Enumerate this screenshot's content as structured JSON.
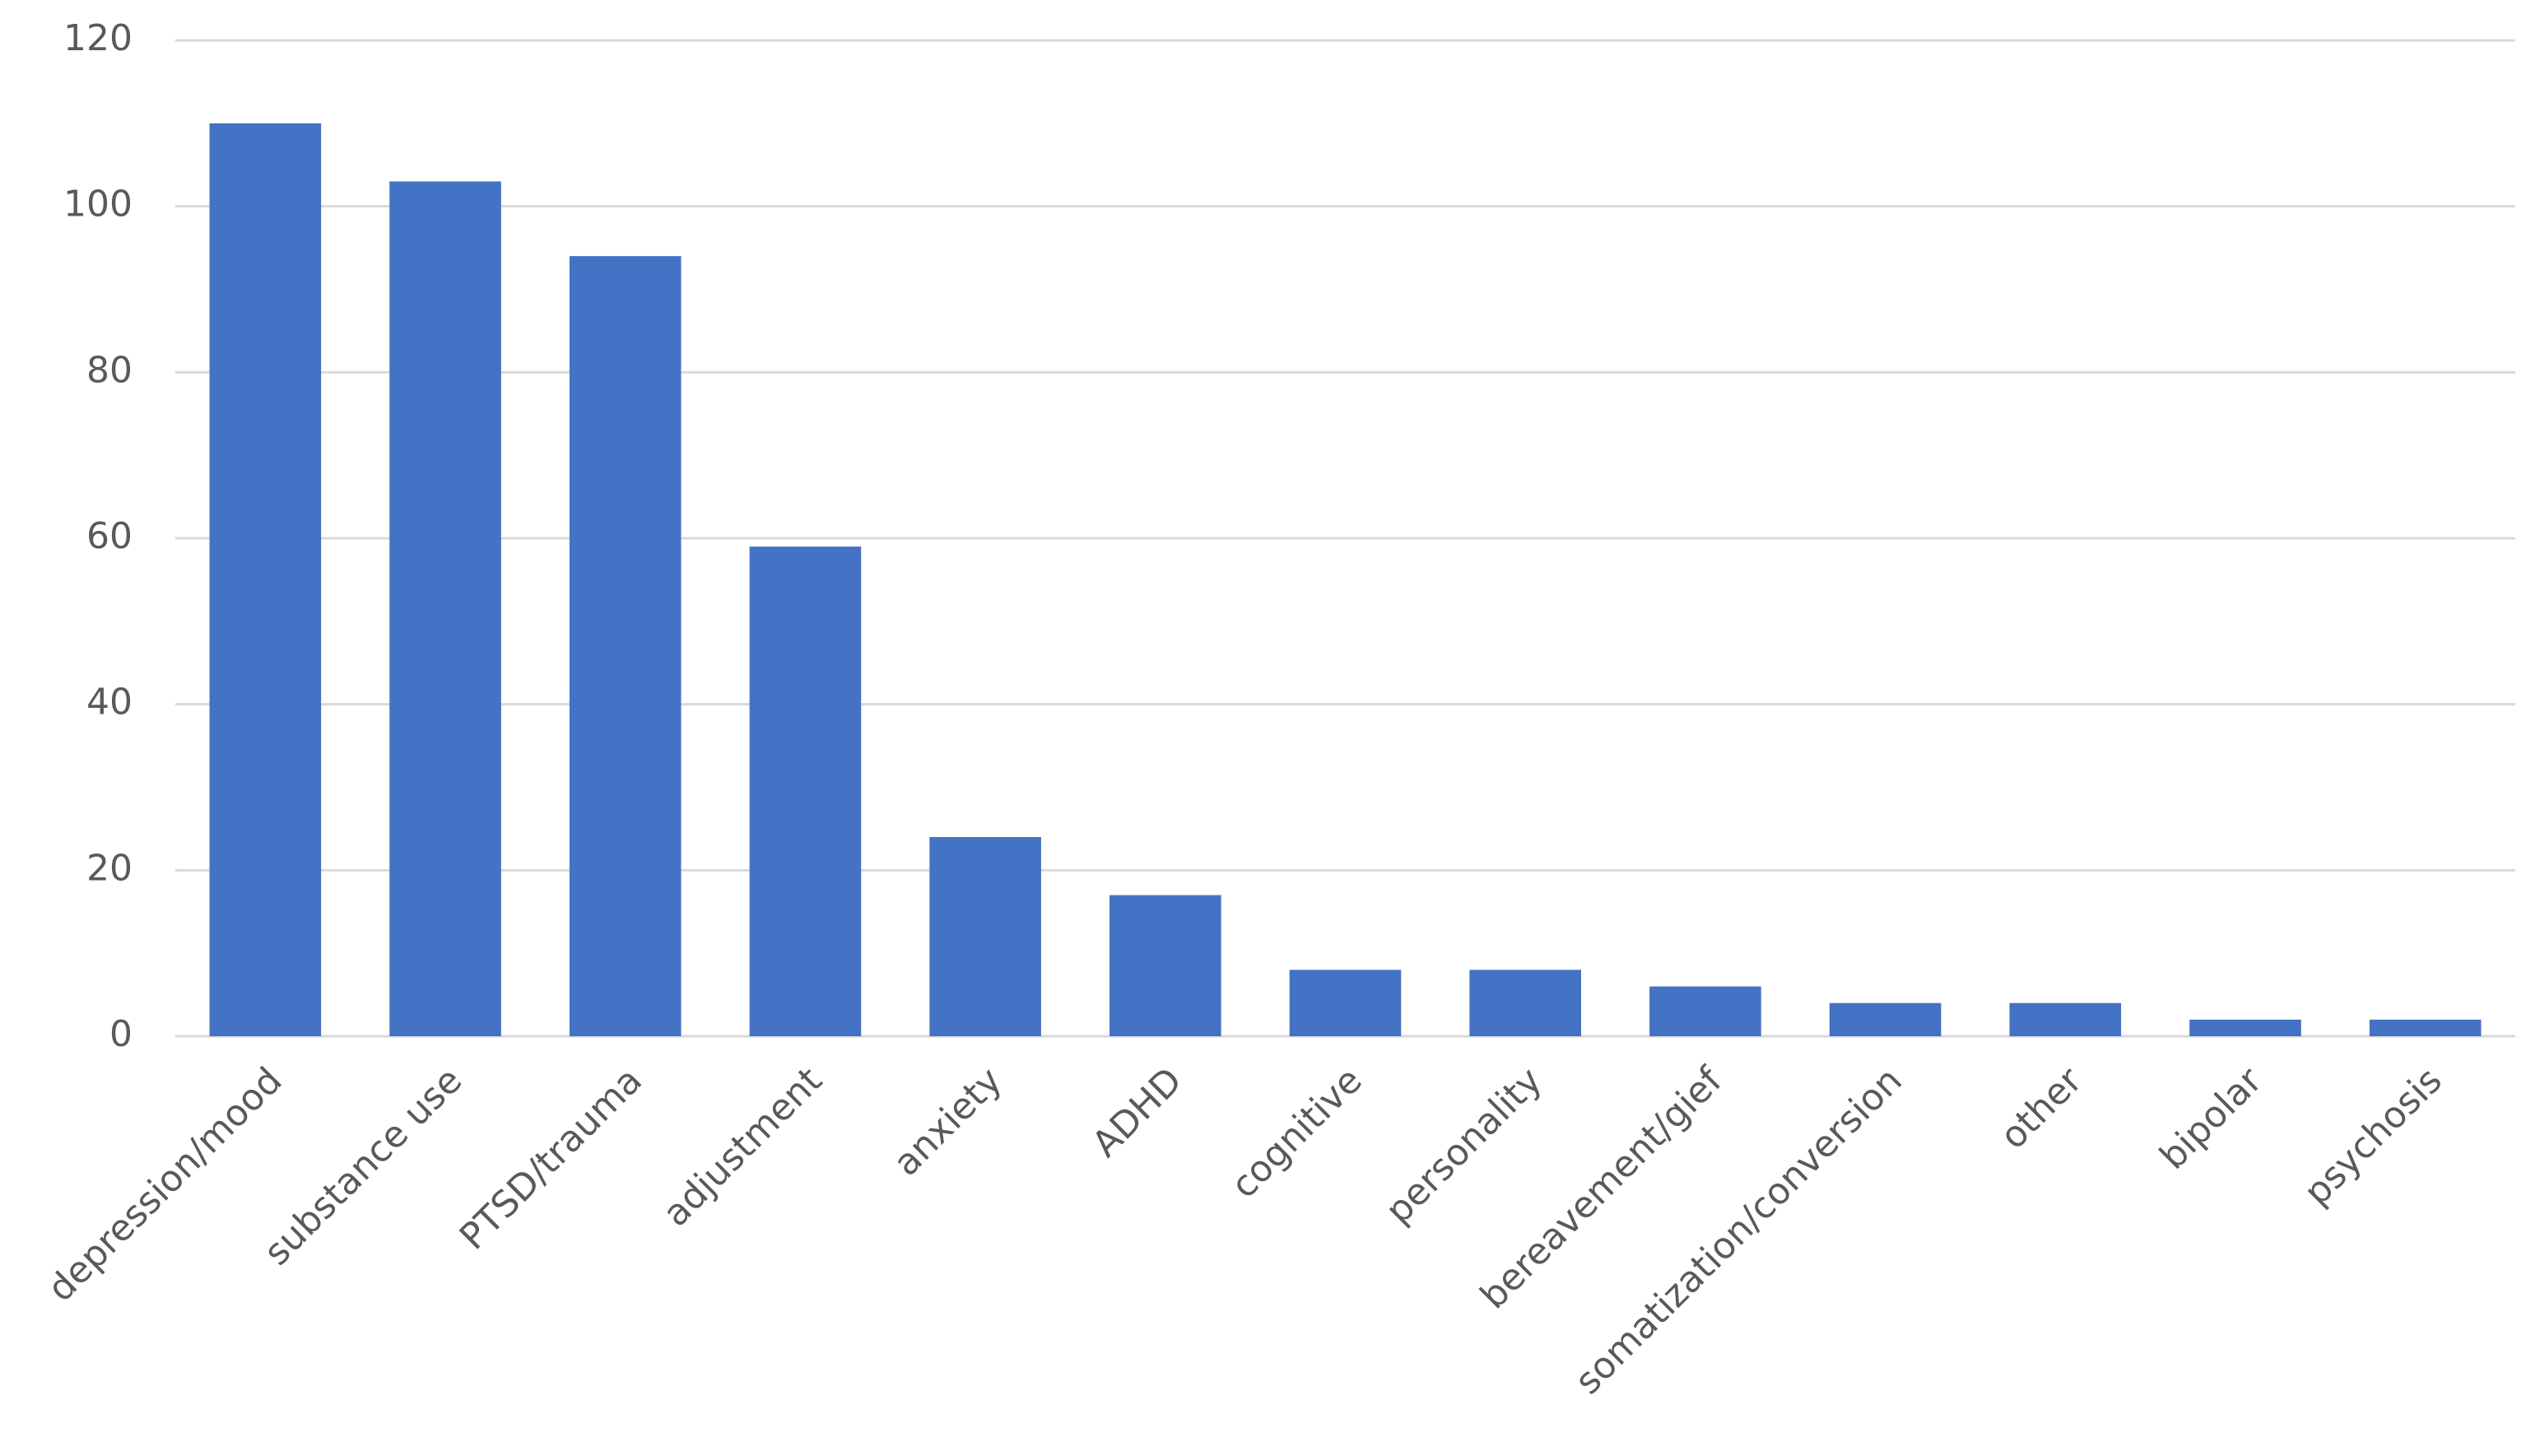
{
  "chart_data": {
    "type": "bar",
    "categories": [
      "depression/mood",
      "substance use",
      "PTSD/trauma",
      "adjustment",
      "anxiety",
      "ADHD",
      "cognitive",
      "personality",
      "bereavement/gief",
      "somatization/conversion",
      "other",
      "bipolar",
      "psychosis"
    ],
    "values": [
      110,
      103,
      94,
      59,
      24,
      17,
      8,
      8,
      6,
      4,
      4,
      2,
      2
    ],
    "color": "#4472c4",
    "ylim": [
      0,
      120
    ],
    "yticks": [
      0,
      20,
      40,
      60,
      80,
      100,
      120
    ],
    "grid": true
  }
}
